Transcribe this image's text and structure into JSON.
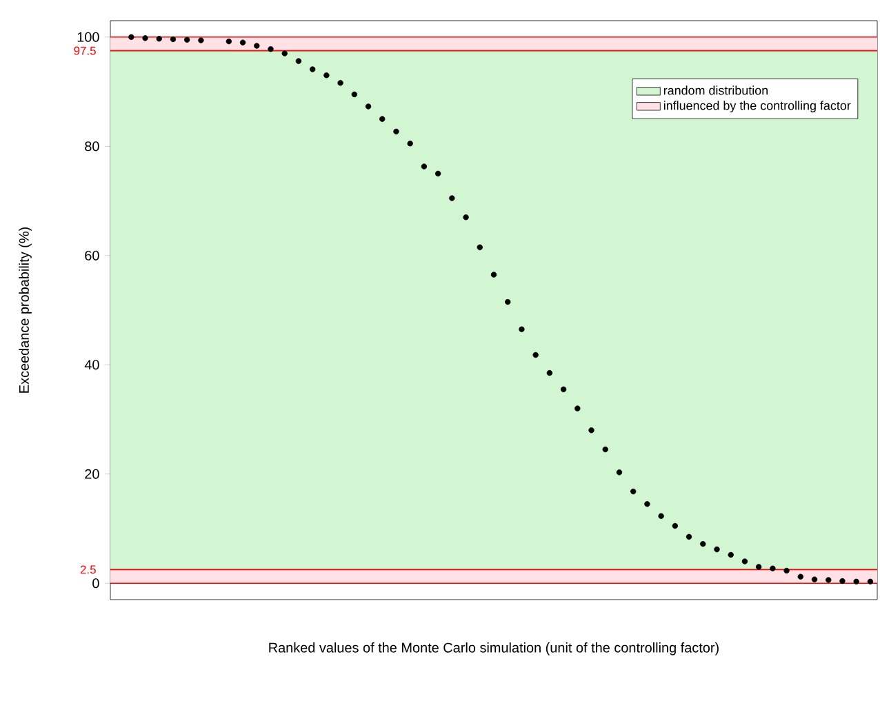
{
  "chart_data": {
    "type": "scatter",
    "xlabel": "Ranked values of the Monte Carlo simulation (unit of the controlling factor)",
    "ylabel": "Exceedance probability (%)",
    "categories": [
      null,
      null,
      null,
      null,
      null,
      null,
      null,
      null,
      null,
      null,
      null,
      null,
      null,
      null,
      null,
      null,
      null,
      null,
      null,
      null,
      null,
      null,
      null,
      null,
      null,
      null,
      null,
      null,
      null,
      null,
      null,
      null,
      null,
      null,
      null,
      null,
      null,
      null,
      null,
      null,
      null,
      null,
      null,
      null,
      null,
      null,
      null,
      null,
      null,
      null,
      null,
      null,
      null,
      null,
      null
    ],
    "series": [
      {
        "color": "#000000",
        "values": [
          null,
          100,
          99.8,
          99.7,
          99.6,
          99.5,
          99.4,
          null,
          99.2,
          99.0,
          98.4,
          97.8,
          97.0,
          95.6,
          94.1,
          93.0,
          91.6,
          89.5,
          87.3,
          85.0,
          82.7,
          80.5,
          76.3,
          75.0,
          70.5,
          67.0,
          61.5,
          56.5,
          51.5,
          46.5,
          41.8,
          38.5,
          35.5,
          32.0,
          28.0,
          24.5,
          20.3,
          16.8,
          14.5,
          12.3,
          10.5,
          8.5,
          7.2,
          6.2,
          5.2,
          4.0,
          3.0,
          2.7,
          2.3,
          1.2,
          0.7,
          0.6,
          0.4,
          0.3,
          0.3
        ]
      }
    ],
    "marker": "circle",
    "ylim": [
      -3,
      103
    ],
    "yticks": [
      0,
      20,
      40,
      60,
      80,
      100
    ],
    "tick_labels": "y",
    "legend": "top right",
    "bands": [
      {
        "axis": "y",
        "from": 2.5,
        "to": 97.5,
        "label": "random distribution",
        "color": "#d2f6d2"
      },
      {
        "axis": "y",
        "from": 0,
        "to": 2.5,
        "label": "influenced by the controlling factor",
        "color": "#ffe1e6"
      },
      {
        "axis": "y",
        "from": 97.5,
        "to": 100,
        "color": "#ffe1e6"
      }
    ],
    "ref_lines": [
      {
        "axis": "y",
        "value": 0,
        "color": "#ff0000"
      },
      {
        "axis": "y",
        "value": 2.5,
        "label": "2.5",
        "color": "#ff0000"
      },
      {
        "axis": "y",
        "value": 97.5,
        "label": "97.5",
        "color": "#ff0000"
      },
      {
        "axis": "y",
        "value": 100,
        "color": "#ff0000"
      }
    ]
  }
}
